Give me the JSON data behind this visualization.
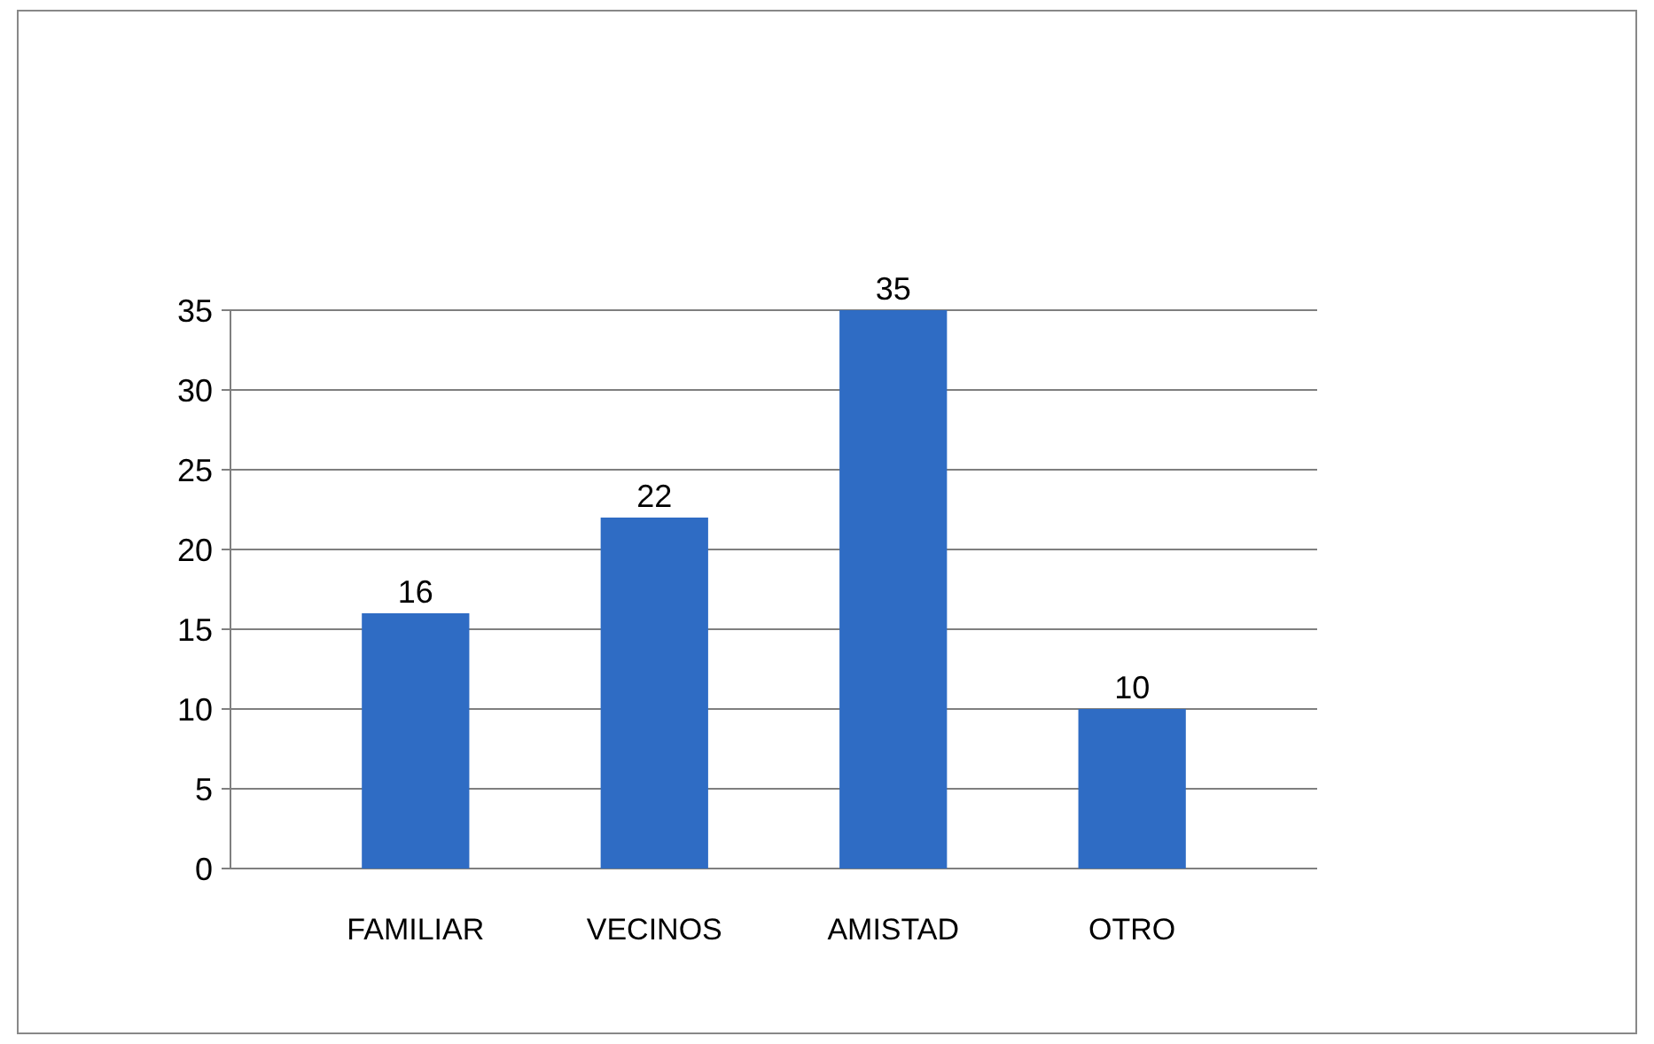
{
  "chart_data": {
    "type": "bar",
    "categories": [
      "FAMILIAR",
      "VECINOS",
      "AMISTAD",
      "OTRO"
    ],
    "values": [
      16,
      22,
      35,
      10
    ],
    "color": "#2f6cc4",
    "ylim": [
      0,
      35
    ],
    "yticks": [
      0,
      5,
      10,
      15,
      20,
      25,
      30,
      35
    ],
    "grid": "y",
    "data_labels": true
  }
}
